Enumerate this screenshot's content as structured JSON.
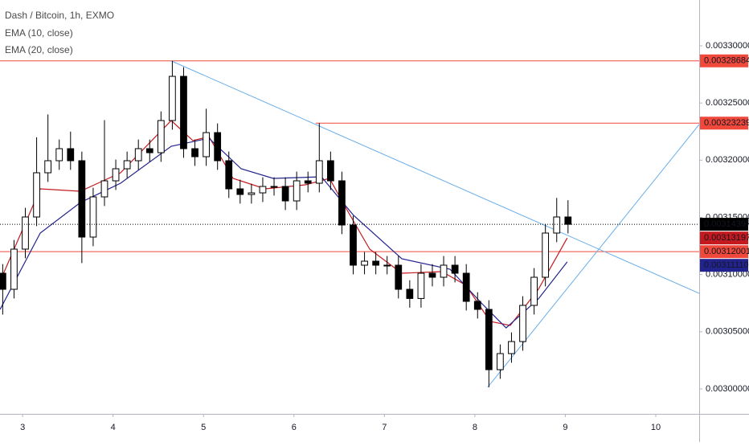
{
  "chart_data": {
    "type": "candlestick",
    "title": "Dash / Bitcoin, 1h, EXMO",
    "x": [
      2.78,
      2.905,
      3.03,
      3.155,
      3.28,
      3.405,
      3.53,
      3.655,
      3.78,
      3.905,
      4.03,
      4.155,
      4.28,
      4.405,
      4.53,
      4.655,
      4.78,
      4.905,
      5.03,
      5.155,
      5.28,
      5.405,
      5.53,
      5.655,
      5.78,
      5.905,
      6.03,
      6.155,
      6.28,
      6.405,
      6.53,
      6.655,
      6.78,
      6.905,
      7.03,
      7.155,
      7.28,
      7.405,
      7.53,
      7.655,
      7.78,
      7.905,
      8.03,
      8.155,
      8.28,
      8.405,
      8.53,
      8.655,
      8.78,
      8.905,
      9.03
    ],
    "open": [
      0.00310116,
      0.00308711,
      0.00312224,
      0.00315035,
      0.00318899,
      0.00319953,
      0.00321007,
      0.00319953,
      0.00313278,
      0.00316791,
      0.00318196,
      0.0031925,
      0.00319953,
      0.00321007,
      0.00320655,
      0.00323466,
      0.0032733,
      0.00321007,
      0.00320304,
      0.00322412,
      0.00319953,
      0.00317494,
      0.00317002,
      0.00317142,
      0.00317704,
      0.00317704,
      0.0031644,
      0.00318196,
      0.00317986,
      0.00319953,
      0.00318196,
      0.00314332,
      0.00310819,
      0.0031117,
      0.00310819,
      0.00310819,
      0.00308711,
      0.00307909,
      0.00310116,
      0.00309765,
      0.00310819,
      0.00310116,
      0.00307657,
      0.00306955,
      0.00301685,
      0.0030309,
      0.00304144,
      0.00307306,
      0.00309765,
      0.00313629,
      0.00315035
    ],
    "high": [
      0.00310916,
      0.00313024,
      0.00315835,
      0.00322,
      0.00324,
      0.00321807,
      0.003225,
      0.00320753,
      0.00317591,
      0.003235,
      0.0032005,
      0.00320753,
      0.00321807,
      0.00321807,
      0.00324266,
      0.00328684,
      0.0032813,
      0.00321807,
      0.003245,
      0.00323212,
      0.00320753,
      0.00318294,
      0.00317942,
      0.00318504,
      0.00318504,
      0.00318504,
      0.00318996,
      0.00318996,
      0.00323239,
      0.00320753,
      0.00318996,
      0.00315132,
      0.0031197,
      0.0031197,
      0.00311619,
      0.00311619,
      0.00309511,
      0.00310916,
      0.00310916,
      0.00311619,
      0.00311619,
      0.00310916,
      0.00308457,
      0.00307755,
      0.0030389,
      0.00304944,
      0.00308106,
      0.00310565,
      0.00314429,
      0.003167,
      0.003165
    ],
    "low": [
      0.003065,
      0.00307911,
      0.00311424,
      0.00314235,
      0.00318099,
      0.00319153,
      0.00319153,
      0.00311,
      0.00312478,
      0.00315991,
      0.00317396,
      0.0031845,
      0.00319153,
      0.00319855,
      0.00319855,
      0.00322666,
      0.00320207,
      0.00319504,
      0.00319504,
      0.00319153,
      0.00316694,
      0.00316202,
      0.00316202,
      0.00316342,
      0.00316904,
      0.0031564,
      0.0031564,
      0.00317186,
      0.00317186,
      0.00317396,
      0.00313532,
      0.00310019,
      0.00310019,
      0.00310019,
      0.00310019,
      0.00307911,
      0.00307109,
      0.00307109,
      0.00308965,
      0.00308965,
      0.00309316,
      0.00306857,
      0.00306155,
      0.0030015,
      0.00300885,
      0.0030229,
      0.00303344,
      0.00306506,
      0.00308965,
      0.00312829,
      0.00313597
    ],
    "close": [
      0.00308711,
      0.00312224,
      0.00315035,
      0.00318899,
      0.00319953,
      0.00321007,
      0.00319953,
      0.00313278,
      0.00316791,
      0.00318196,
      0.0031925,
      0.00319953,
      0.00321007,
      0.00320655,
      0.00323466,
      0.0032733,
      0.00321007,
      0.00320304,
      0.00322412,
      0.00319953,
      0.00317494,
      0.00317002,
      0.00317142,
      0.00317704,
      0.00317704,
      0.0031644,
      0.00318196,
      0.00317986,
      0.00319953,
      0.00318196,
      0.00314332,
      0.00310819,
      0.0031117,
      0.00310819,
      0.00310819,
      0.00308711,
      0.00307909,
      0.00310116,
      0.00309765,
      0.00310819,
      0.00310116,
      0.00307657,
      0.00306955,
      0.00301685,
      0.0030309,
      0.00304144,
      0.00307306,
      0.00309765,
      0.00313629,
      0.00315035,
      0.00314397
    ],
    "up_color": "#ffffff",
    "down_color": "#000000",
    "last_price_color": "#000000",
    "xlim": [
      2.75,
      10.48
    ],
    "ylim": [
      0.00297821,
      0.00334005
    ],
    "xticks": [
      3,
      4,
      5,
      6,
      7,
      8,
      9,
      10
    ],
    "yticks": [
      {
        "value": 0.003,
        "label": "0.00300000"
      },
      {
        "value": 0.00305,
        "label": "0.00305000"
      },
      {
        "value": 0.0031,
        "label": "0.00310000"
      },
      {
        "value": 0.00315,
        "label": "0.00315000"
      },
      {
        "value": 0.0032,
        "label": "0.00320000"
      },
      {
        "value": 0.00325,
        "label": "0.00325000"
      },
      {
        "value": 0.0033,
        "label": "0.00330000"
      }
    ],
    "series": [
      {
        "name": "EMA (10, close)",
        "color": "#c41a1f",
        "x": [
          2.751,
          3.195,
          3.639,
          4.083,
          4.643,
          4.883,
          5.06,
          5.327,
          5.682,
          6.126,
          6.393,
          6.57,
          6.837,
          7.192,
          7.636,
          7.902,
          8.169,
          8.391,
          8.702,
          9.021
        ],
        "values": [
          0.00309414,
          0.00317494,
          0.00317283,
          0.00318899,
          0.00323466,
          0.00321709,
          0.00322061,
          0.00318407,
          0.00317494,
          0.00317845,
          0.00318407,
          0.00315878,
          0.00312224,
          0.00310116,
          0.00310257,
          0.00309063,
          0.00305901,
          0.0030555,
          0.00308711,
          0.00313197
        ]
      },
      {
        "name": "EMA (20, close)",
        "color": "#23238e",
        "x": [
          2.751,
          3.195,
          3.639,
          4.083,
          4.643,
          5.06,
          5.416,
          5.771,
          6.304,
          6.659,
          7.192,
          7.725,
          8.08,
          8.346,
          8.702,
          9.021
        ],
        "values": [
          0.00306955,
          0.00313629,
          0.00316299,
          0.00317986,
          0.00321217,
          0.0032192,
          0.0031925,
          0.00318407,
          0.00318548,
          0.00315175,
          0.00311381,
          0.00310468,
          0.00307447,
          0.00305339,
          0.00307868,
          0.0031111
        ],
        "value_labels": [
          null,
          null,
          null,
          null,
          null,
          null,
          null,
          null,
          null,
          null,
          null,
          null,
          null,
          null,
          null,
          "0.00311110"
        ]
      }
    ],
    "levels": [
      {
        "value": 0.00328684,
        "color": "#f0483a",
        "start": 2.75
      },
      {
        "value": 0.00323239,
        "color": "#f0483a",
        "start": 6.24
      },
      {
        "value": 0.00312001,
        "color": "#f0483a",
        "start": 2.75
      }
    ],
    "trendlines": [
      {
        "x": [
          4.643,
          10.48
        ],
        "y": [
          0.00328684,
          0.0030836
        ],
        "color": "#6aaeea"
      },
      {
        "x": [
          8.142,
          10.48
        ],
        "y": [
          0.0030015,
          0.00323115
        ],
        "color": "#6aaeea"
      }
    ]
  }
}
